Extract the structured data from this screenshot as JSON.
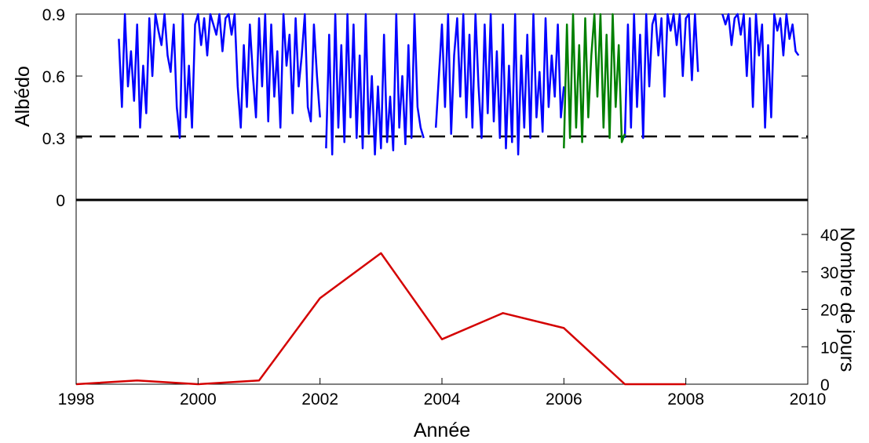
{
  "chart_data": {
    "type": "line",
    "xlabel": "Année",
    "ylabel_left": "Albédo",
    "ylabel_right": "Nombre de jours",
    "x_range": [
      1998,
      2010
    ],
    "x_ticks": [
      1998,
      2000,
      2002,
      2004,
      2006,
      2008,
      2010
    ],
    "x_tick_labels": [
      "1998",
      "2000",
      "2002",
      "2004",
      "2006",
      "2008",
      "2010"
    ],
    "grid": false,
    "top_panel": {
      "ylim": [
        0,
        0.9
      ],
      "y_ticks": [
        0,
        0.3,
        0.6,
        0.9
      ],
      "y_tick_labels": [
        "0",
        "0.3",
        "0.6",
        "0.9"
      ],
      "threshold": 0.3,
      "series": [
        {
          "color": "#0000ff",
          "approx_segments": [
            {
              "x": [
                1998.7,
                1998.75,
                1998.8,
                1998.85,
                1998.9,
                1998.95,
                1999.0,
                1999.05,
                1999.1,
                1999.15,
                1999.2,
                1999.25,
                1999.3,
                1999.35,
                1999.4,
                1999.45,
                1999.5,
                1999.55,
                1999.6,
                1999.65,
                1999.7,
                1999.75,
                1999.8,
                1999.85,
                1999.9,
                1999.95,
                2000.0,
                2000.05,
                2000.1,
                2000.15,
                2000.2,
                2000.25,
                2000.3,
                2000.35,
                2000.4,
                2000.45,
                2000.5,
                2000.55,
                2000.6,
                2000.65,
                2000.7,
                2000.75,
                2000.8,
                2000.85,
                2000.9,
                2000.95,
                2001.0,
                2001.05,
                2001.1,
                2001.15,
                2001.2,
                2001.25,
                2001.3,
                2001.35,
                2001.4,
                2001.45,
                2001.5,
                2001.55,
                2001.6,
                2001.65,
                2001.7,
                2001.75,
                2001.8,
                2001.85,
                2001.9,
                2001.95,
                2002.0
              ],
              "y": [
                0.78,
                0.45,
                0.9,
                0.55,
                0.72,
                0.48,
                0.85,
                0.35,
                0.65,
                0.42,
                0.88,
                0.6,
                0.9,
                0.82,
                0.75,
                0.9,
                0.7,
                0.62,
                0.85,
                0.45,
                0.3,
                0.9,
                0.4,
                0.65,
                0.35,
                0.85,
                0.9,
                0.75,
                0.88,
                0.7,
                0.9,
                0.85,
                0.8,
                0.9,
                0.72,
                0.88,
                0.9,
                0.8,
                0.9,
                0.55,
                0.35,
                0.75,
                0.45,
                0.85,
                0.6,
                0.4,
                0.88,
                0.55,
                0.9,
                0.38,
                0.85,
                0.5,
                0.72,
                0.35,
                0.9,
                0.65,
                0.8,
                0.42,
                0.88,
                0.55,
                0.7,
                0.9,
                0.45,
                0.38,
                0.85,
                0.6,
                0.4
              ]
            },
            {
              "x": [
                2002.1,
                2002.15,
                2002.2,
                2002.25,
                2002.3,
                2002.35,
                2002.4,
                2002.45,
                2002.5,
                2002.55,
                2002.6,
                2002.65,
                2002.7,
                2002.75,
                2002.8,
                2002.85,
                2002.9,
                2002.95,
                2003.0,
                2003.05,
                2003.1,
                2003.15,
                2003.2,
                2003.25,
                2003.3,
                2003.35,
                2003.4,
                2003.45,
                2003.5,
                2003.55,
                2003.6,
                2003.65,
                2003.7
              ],
              "y": [
                0.25,
                0.8,
                0.22,
                0.9,
                0.35,
                0.75,
                0.28,
                0.9,
                0.4,
                0.85,
                0.3,
                0.7,
                0.25,
                0.9,
                0.32,
                0.6,
                0.22,
                0.55,
                0.25,
                0.8,
                0.28,
                0.5,
                0.24,
                0.9,
                0.35,
                0.6,
                0.27,
                0.75,
                0.3,
                0.9,
                0.45,
                0.35,
                0.3
              ]
            },
            {
              "x": [
                2003.9,
                2004.0,
                2004.05,
                2004.1,
                2004.15,
                2004.2,
                2004.25,
                2004.3,
                2004.35,
                2004.4,
                2004.45,
                2004.5,
                2004.55,
                2004.6,
                2004.65,
                2004.7,
                2004.75,
                2004.8,
                2004.85,
                2004.9,
                2004.95,
                2005.0,
                2005.05,
                2005.1,
                2005.15,
                2005.2,
                2005.25,
                2005.3,
                2005.35,
                2005.4,
                2005.45,
                2005.5,
                2005.55,
                2005.6,
                2005.65,
                2005.7,
                2005.75,
                2005.8,
                2005.85,
                2005.9,
                2005.95,
                2006.0
              ],
              "y": [
                0.35,
                0.85,
                0.45,
                0.9,
                0.32,
                0.7,
                0.88,
                0.5,
                0.9,
                0.4,
                0.8,
                0.35,
                0.9,
                0.55,
                0.3,
                0.85,
                0.42,
                0.9,
                0.38,
                0.72,
                0.3,
                0.85,
                0.25,
                0.65,
                0.28,
                0.9,
                0.22,
                0.7,
                0.35,
                0.8,
                0.3,
                0.9,
                0.4,
                0.62,
                0.33,
                0.88,
                0.45,
                0.7,
                0.5,
                0.85,
                0.4,
                0.55
              ]
            },
            {
              "x": [
                2007.0,
                2007.05,
                2007.1,
                2007.15,
                2007.2,
                2007.25,
                2007.3,
                2007.35,
                2007.4,
                2007.45,
                2007.5,
                2007.55,
                2007.6,
                2007.65,
                2007.7,
                2007.75,
                2007.8,
                2007.85,
                2007.9,
                2007.95,
                2008.0,
                2008.05,
                2008.1,
                2008.15,
                2008.2
              ],
              "y": [
                0.3,
                0.85,
                0.35,
                0.9,
                0.45,
                0.8,
                0.3,
                0.9,
                0.55,
                0.85,
                0.9,
                0.7,
                0.88,
                0.5,
                0.9,
                0.82,
                0.9,
                0.75,
                0.9,
                0.6,
                0.88,
                0.9,
                0.58,
                0.9,
                0.62
              ]
            },
            {
              "x": [
                2008.6,
                2008.65,
                2008.7,
                2008.75,
                2008.8,
                2008.85,
                2008.9,
                2008.95,
                2009.0,
                2009.05,
                2009.1,
                2009.15,
                2009.2,
                2009.25,
                2009.3,
                2009.35,
                2009.4,
                2009.45,
                2009.5,
                2009.55,
                2009.6,
                2009.65,
                2009.7,
                2009.75,
                2009.8,
                2009.85
              ],
              "y": [
                0.9,
                0.85,
                0.9,
                0.75,
                0.88,
                0.9,
                0.8,
                0.9,
                0.6,
                0.88,
                0.45,
                0.9,
                0.7,
                0.85,
                0.35,
                0.75,
                0.4,
                0.9,
                0.82,
                0.88,
                0.7,
                0.9,
                0.78,
                0.85,
                0.72,
                0.7
              ]
            }
          ]
        },
        {
          "color": "#008000",
          "approx_segments": [
            {
              "x": [
                2006.0,
                2006.05,
                2006.1,
                2006.15,
                2006.2,
                2006.25,
                2006.3,
                2006.35,
                2006.4,
                2006.45,
                2006.5,
                2006.55,
                2006.6,
                2006.65,
                2006.7,
                2006.75,
                2006.8,
                2006.85,
                2006.9,
                2006.95,
                2007.0
              ],
              "y": [
                0.25,
                0.85,
                0.3,
                0.9,
                0.35,
                0.75,
                0.28,
                0.88,
                0.4,
                0.7,
                0.9,
                0.5,
                0.9,
                0.35,
                0.8,
                0.3,
                0.9,
                0.45,
                0.75,
                0.28,
                0.32
              ]
            }
          ]
        }
      ]
    },
    "bottom_panel": {
      "ylim": [
        0,
        48
      ],
      "y_ticks": [
        0,
        10,
        20,
        30,
        40
      ],
      "y_tick_labels": [
        "0",
        "10",
        "20",
        "30",
        "40"
      ],
      "series": [
        {
          "color": "#d40000",
          "x": [
            1998,
            1999,
            2000,
            2001,
            2002,
            2003,
            2004,
            2005,
            2006,
            2007,
            2008
          ],
          "values": [
            0,
            1,
            0,
            1,
            23,
            35,
            12,
            19,
            15,
            0,
            0
          ]
        }
      ]
    }
  }
}
